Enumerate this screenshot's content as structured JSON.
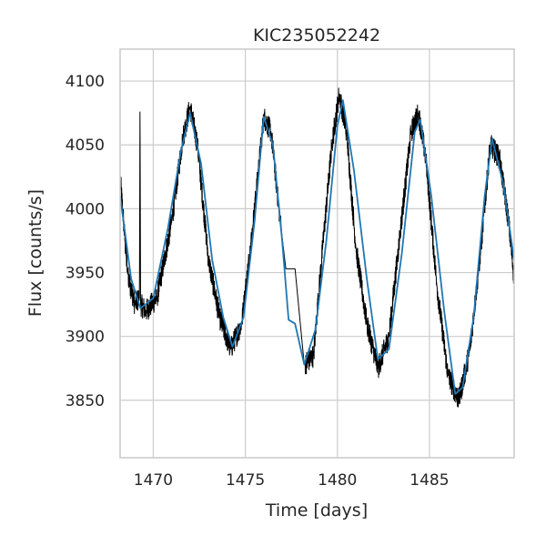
{
  "chart_data": {
    "type": "line",
    "title": "KIC235052242",
    "xlabel": "Time [days]",
    "ylabel": "Flux [counts/s]",
    "xlim": [
      1468.2,
      1489.6
    ],
    "ylim": [
      3805,
      4125
    ],
    "xticks": [
      1470,
      1475,
      1480,
      1485
    ],
    "yticks": [
      3850,
      3900,
      3950,
      4000,
      4050,
      4100
    ],
    "grid": true,
    "legend": "none",
    "colors": {
      "raw": "#000000",
      "binned": "#1f77b4"
    },
    "series": [
      {
        "role": "raw",
        "style": "noisy step line",
        "noise_amplitude": 9,
        "x": [
          1468.2,
          1468.6,
          1469.0,
          1469.25,
          1469.28,
          1469.31,
          1469.6,
          1470.2,
          1471.0,
          1471.6,
          1472.0,
          1472.4,
          1473.0,
          1473.6,
          1474.2,
          1474.8,
          1475.4,
          1476.0,
          1476.4,
          1476.9,
          1477.2,
          1477.7,
          1478.2,
          1478.7,
          1479.2,
          1479.7,
          1480.1,
          1480.5,
          1481.0,
          1481.6,
          1482.2,
          1482.8,
          1483.4,
          1484.0,
          1484.4,
          1484.8,
          1485.4,
          1486.0,
          1486.6,
          1487.2,
          1487.8,
          1488.3,
          1488.8,
          1489.3,
          1489.6
        ],
        "y": [
          4025,
          3950,
          3925,
          3930,
          4085,
          3925,
          3920,
          3930,
          3990,
          4055,
          4080,
          4050,
          3960,
          3915,
          3890,
          3910,
          3985,
          4072,
          4060,
          3990,
          3953,
          3953,
          3878,
          3885,
          3970,
          4050,
          4090,
          4060,
          3970,
          3910,
          3875,
          3900,
          3980,
          4060,
          4075,
          4040,
          3940,
          3870,
          3850,
          3890,
          3970,
          4050,
          4040,
          3990,
          3945
        ]
      },
      {
        "role": "binned",
        "style": "step line",
        "x": [
          1468.2,
          1468.8,
          1469.3,
          1470.0,
          1470.8,
          1471.5,
          1472.0,
          1472.6,
          1473.2,
          1473.8,
          1474.3,
          1474.9,
          1475.5,
          1476.0,
          1476.5,
          1477.0,
          1477.35,
          1477.7,
          1478.2,
          1478.8,
          1479.4,
          1480.0,
          1480.3,
          1480.9,
          1481.6,
          1482.2,
          1482.8,
          1483.5,
          1484.2,
          1484.5,
          1485.1,
          1485.8,
          1486.4,
          1486.8,
          1487.4,
          1488.0,
          1488.4,
          1489.0,
          1489.6
        ],
        "y": [
          4010,
          3945,
          3922,
          3930,
          3985,
          4045,
          4075,
          4035,
          3960,
          3915,
          3892,
          3915,
          3990,
          4072,
          4050,
          3975,
          3913,
          3910,
          3878,
          3905,
          3975,
          4065,
          4085,
          4030,
          3945,
          3882,
          3890,
          3965,
          4060,
          4070,
          4010,
          3920,
          3855,
          3860,
          3915,
          4010,
          4055,
          4020,
          3960
        ]
      }
    ]
  }
}
